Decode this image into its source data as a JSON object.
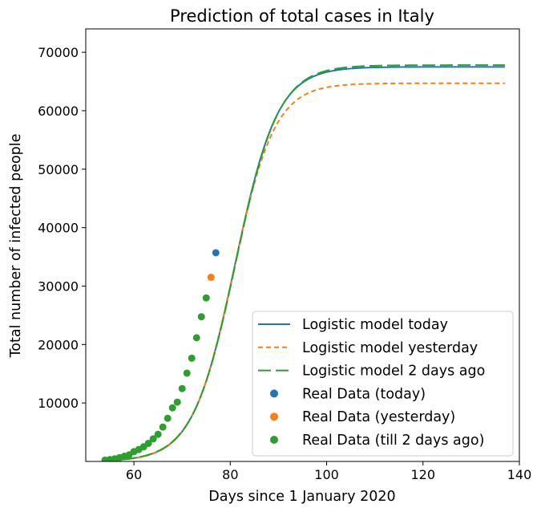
{
  "chart_data": {
    "type": "line",
    "title": "Prediction of total cases in Italy",
    "xlabel": "Days since 1 January 2020",
    "ylabel": "Total number of infected people",
    "xlim": [
      50,
      140
    ],
    "ylim": [
      0,
      74000
    ],
    "xticks": [
      60,
      80,
      100,
      120,
      140
    ],
    "yticks": [
      10000,
      20000,
      30000,
      40000,
      50000,
      60000,
      70000
    ],
    "grid": false,
    "legend_position": "lower right",
    "lines": [
      {
        "name": "Logistic model today",
        "style": "solid",
        "color": "#1f77b4",
        "a": 4.4,
        "b": 81.0,
        "c": 67500,
        "x_start": 54,
        "x_end": 137
      },
      {
        "name": "Logistic model yesterday",
        "style": "dashed-short",
        "color": "#ff7f0e",
        "a": 4.3,
        "b": 80.6,
        "c": 64700,
        "x_start": 54,
        "x_end": 137
      },
      {
        "name": "Logistic model 2 days ago",
        "style": "dashed-long",
        "color": "#2ca02c",
        "a": 4.45,
        "b": 81.1,
        "c": 67800,
        "x_start": 54,
        "x_end": 137
      }
    ],
    "scatter": [
      {
        "name": "Real Data (today)",
        "color": "#1f77b4",
        "x": [
          77
        ],
        "y": [
          35700
        ]
      },
      {
        "name": "Real Data (yesterday)",
        "color": "#ff7f0e",
        "x": [
          76
        ],
        "y": [
          31500
        ]
      },
      {
        "name": "Real Data (till 2 days ago)",
        "color": "#2ca02c",
        "x": [
          54,
          55,
          56,
          57,
          58,
          59,
          60,
          61,
          62,
          63,
          64,
          65,
          66,
          67,
          68,
          69,
          70,
          71,
          72,
          73,
          74,
          75
        ],
        "y": [
          230,
          320,
          450,
          650,
          890,
          1130,
          1690,
          2040,
          2500,
          3090,
          3860,
          4640,
          5880,
          7380,
          9170,
          10150,
          12460,
          15110,
          17660,
          21160,
          24750,
          27980
        ]
      }
    ]
  }
}
